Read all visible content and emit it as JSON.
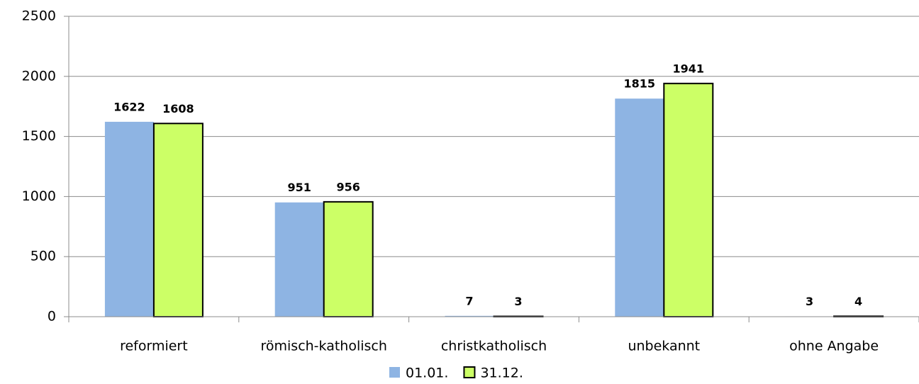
{
  "chart_data": {
    "type": "bar",
    "categories": [
      "reformiert",
      "römisch-katholisch",
      "christkatholisch",
      "unbekannt",
      "ohne Angabe"
    ],
    "series": [
      {
        "name": "01.01.",
        "color": "#8eb4e3",
        "edgecolor": null,
        "values": [
          1622,
          951,
          7,
          1815,
          3
        ]
      },
      {
        "name": "31.12.",
        "color": "#ccff66",
        "edgecolor": "#000000",
        "values": [
          1608,
          956,
          3,
          1941,
          4
        ]
      }
    ],
    "ylim": [
      0,
      2500
    ],
    "yticks": [
      0,
      500,
      1000,
      1500,
      2000,
      2500
    ],
    "grid": true,
    "legend": "bottom"
  }
}
